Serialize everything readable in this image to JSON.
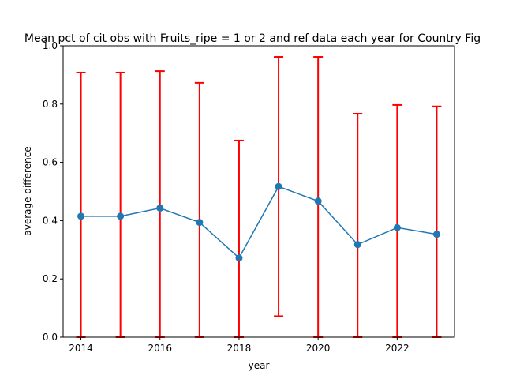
{
  "chart_data": {
    "type": "line",
    "title": "Mean pct of cit obs with Fruits_ripe = 1 or 2 and ref data each year for Country Fig",
    "xlabel": "year",
    "ylabel": "average difference",
    "x": [
      2014,
      2015,
      2016,
      2017,
      2018,
      2019,
      2020,
      2021,
      2022,
      2023
    ],
    "y": [
      0.415,
      0.415,
      0.443,
      0.394,
      0.272,
      0.517,
      0.467,
      0.318,
      0.376,
      0.353
    ],
    "error_lower": [
      0.0,
      0.0,
      0.0,
      0.0,
      0.0,
      0.072,
      0.0,
      0.0,
      0.0,
      0.0
    ],
    "error_upper": [
      0.908,
      0.908,
      0.913,
      0.873,
      0.675,
      0.962,
      0.962,
      0.767,
      0.797,
      0.792
    ],
    "xlim": [
      2013.55,
      2023.45
    ],
    "ylim": [
      0,
      1
    ],
    "xticks": [
      2014,
      2016,
      2018,
      2020,
      2022
    ],
    "yticks": [
      0.0,
      0.2,
      0.4,
      0.6,
      0.8,
      1.0
    ],
    "grid": false,
    "line_color": "#1f77b4",
    "marker_color": "#1f77b4",
    "errorbar_color": "#ff0000"
  }
}
